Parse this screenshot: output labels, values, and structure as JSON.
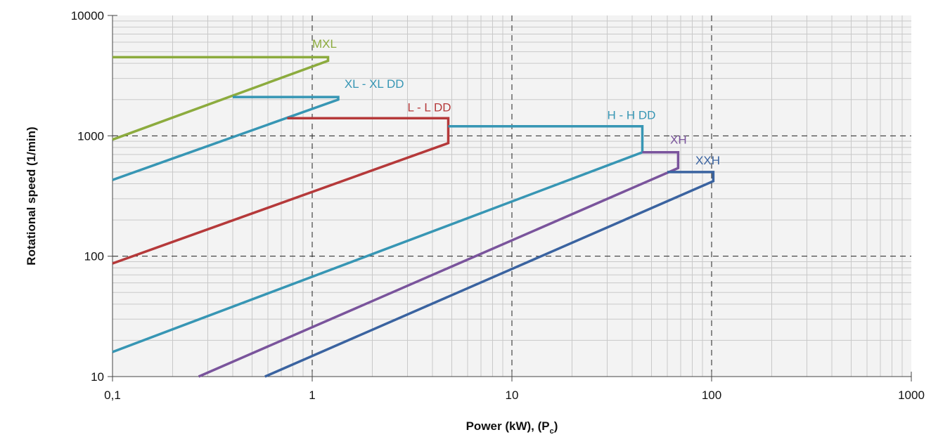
{
  "chart_data": {
    "type": "line",
    "title": "",
    "xlabel": "Power (kW), (P",
    "xlabel_sub": "c",
    "xlabel_end": ")",
    "ylabel": "Rotational speed (1/min)",
    "x_scale": "log",
    "y_scale": "log",
    "xlim": [
      0.1,
      1000
    ],
    "ylim": [
      10,
      10000
    ],
    "x_ticks": [
      {
        "value": 0.1,
        "label": "0,1"
      },
      {
        "value": 1,
        "label": "1"
      },
      {
        "value": 10,
        "label": "10"
      },
      {
        "value": 100,
        "label": "100"
      },
      {
        "value": 1000,
        "label": "1000"
      }
    ],
    "y_ticks": [
      {
        "value": 10,
        "label": "10"
      },
      {
        "value": 100,
        "label": "100"
      },
      {
        "value": 1000,
        "label": "1000"
      },
      {
        "value": 10000,
        "label": "10000"
      }
    ],
    "grid": true,
    "legend": "labels placed on the series",
    "series": [
      {
        "name": "MXL",
        "color": "#8cab3e",
        "label_at": [
          1.0,
          5400
        ],
        "x": [
          0.1,
          1.2,
          1.2,
          0.1
        ],
        "y": [
          4500,
          4500,
          4200,
          930
        ]
      },
      {
        "name": "XL - XL DD",
        "color": "#3796b4",
        "label_at": [
          1.45,
          2500
        ],
        "x": [
          0.4,
          1.35,
          1.35,
          0.1
        ],
        "y": [
          2100,
          2100,
          2000,
          430
        ]
      },
      {
        "name": "L - L DD",
        "color": "#b5393a",
        "label_at": [
          3.0,
          1600
        ],
        "x": [
          0.75,
          4.8,
          4.8,
          0.1
        ],
        "y": [
          1400,
          1400,
          870,
          87
        ]
      },
      {
        "name": "H - H DD",
        "color": "#3796b4",
        "label_at": [
          30,
          1380
        ],
        "x": [
          4.8,
          45,
          45,
          0.1
        ],
        "y": [
          1200,
          1200,
          730,
          16
        ]
      },
      {
        "name": "XH",
        "color": "#7a549c",
        "label_at": [
          62,
          860
        ],
        "x": [
          45,
          68,
          68,
          0.27
        ],
        "y": [
          730,
          730,
          540,
          10
        ]
      },
      {
        "name": "XXH",
        "color": "#3a63a0",
        "label_at": [
          83,
          580
        ],
        "x": [
          60,
          102,
          102,
          0.58
        ],
        "y": [
          500,
          500,
          420,
          10
        ]
      }
    ]
  }
}
